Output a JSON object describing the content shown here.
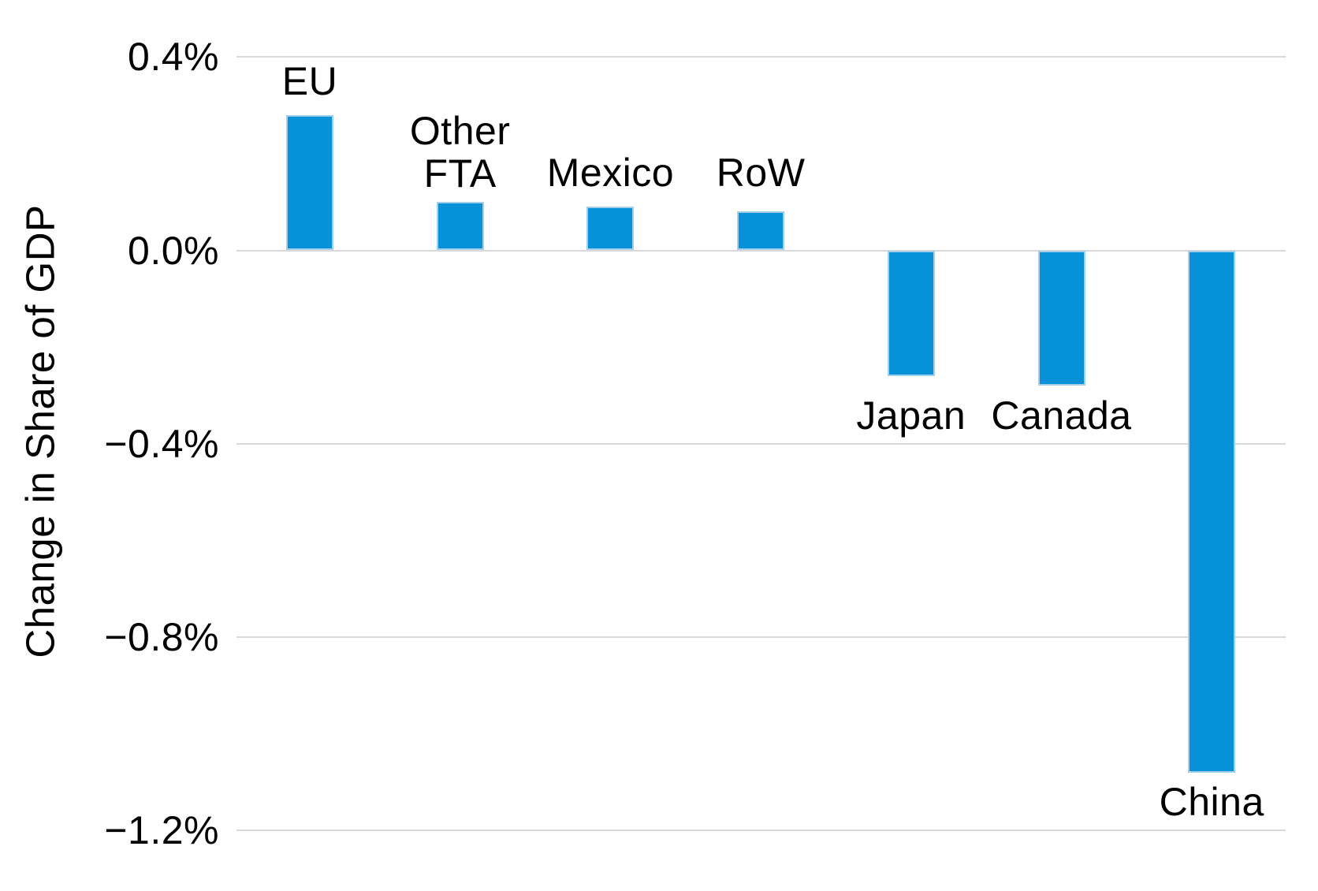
{
  "chart_data": {
    "type": "bar",
    "title": "",
    "xlabel": "",
    "ylabel": "Change in Share of GDP",
    "unit": "%",
    "categories": [
      "EU",
      "Other FTA",
      "Mexico",
      "RoW",
      "Japan",
      "Canada",
      "China"
    ],
    "values": [
      0.28,
      0.1,
      0.09,
      0.08,
      -0.26,
      -0.28,
      -1.08
    ],
    "category_label_lines": [
      [
        "EU"
      ],
      [
        "Other",
        "FTA"
      ],
      [
        "Mexico"
      ],
      [
        "RoW"
      ],
      [
        "Japan"
      ],
      [
        "Canada"
      ],
      [
        "China"
      ]
    ],
    "label_positions": [
      "above",
      "above",
      "above",
      "above",
      "below",
      "below",
      "below"
    ],
    "ylim": [
      -1.2,
      0.4
    ],
    "yticks": [
      0.4,
      0.0,
      -0.4,
      -0.8,
      -1.2
    ],
    "ytick_labels": [
      "0.4%",
      "0.0%",
      "−0.4%",
      "−0.8%",
      "−1.2%"
    ],
    "grid": true,
    "legend": false,
    "colors": {
      "bar_fill": "#0691d8",
      "bar_border": "#a3cfeb",
      "gridline": "#d9d9d9",
      "text": "#000000",
      "background": "#ffffff"
    }
  }
}
